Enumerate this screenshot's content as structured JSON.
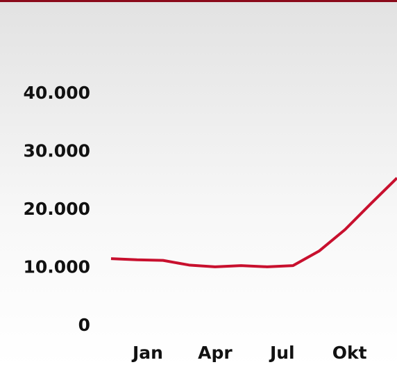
{
  "chart_data": {
    "type": "line",
    "categories": [
      "Jan",
      null,
      null,
      "Apr",
      null,
      null,
      "Jul",
      null,
      null,
      "Okt",
      null,
      null
    ],
    "series": [
      {
        "color": "#c8102e",
        "values": [
          11600,
          11400,
          11300,
          10500,
          10200,
          10400,
          10200,
          10400,
          12900,
          16600,
          21100,
          25500
        ]
      }
    ],
    "ylim": [
      0,
      40000
    ],
    "yticks": [
      0,
      {
        "value": 10000,
        "label": "10.000"
      },
      {
        "value": 20000,
        "label": "20.000"
      },
      {
        "value": 30000,
        "label": "30.000"
      },
      {
        "value": 40000,
        "label": "40.000"
      }
    ],
    "grid": false
  }
}
